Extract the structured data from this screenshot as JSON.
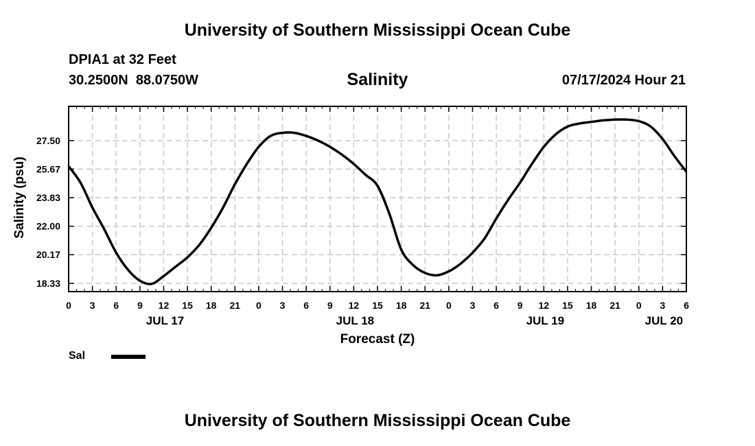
{
  "header": {
    "title": "University of Southern Mississippi Ocean Cube",
    "station": "DPIA1 at 32 Feet",
    "coordinates": "30.2500N  88.0750W",
    "variable": "Salinity",
    "datetime": "07/17/2024 Hour 21"
  },
  "footer": {
    "title": "University of Southern Mississippi Ocean Cube"
  },
  "legend": {
    "label": "Sal"
  },
  "chart_data": {
    "type": "line",
    "title": "Salinity",
    "xlabel": "Forecast (Z)",
    "ylabel": "Salinity (psu)",
    "x_unit": "hours since JUL 17 00Z",
    "xlim": [
      0,
      78
    ],
    "ylim": [
      17.8,
      29.7
    ],
    "yticks": [
      18.33,
      20.17,
      22.0,
      23.83,
      25.67,
      27.5
    ],
    "ytick_labels": [
      "18.33",
      "20.17",
      "22.00",
      "23.83",
      "25.67",
      "27.50"
    ],
    "xticks": [
      0,
      3,
      6,
      9,
      12,
      15,
      18,
      21,
      24,
      27,
      30,
      33,
      36,
      39,
      42,
      45,
      48,
      51,
      54,
      57,
      60,
      63,
      66,
      69,
      72,
      75,
      78
    ],
    "xtick_labels": [
      "0",
      "3",
      "6",
      "9",
      "12",
      "15",
      "18",
      "21",
      "0",
      "3",
      "6",
      "9",
      "12",
      "15",
      "18",
      "21",
      "0",
      "3",
      "6",
      "9",
      "12",
      "15",
      "18",
      "21",
      "0",
      "3",
      "6"
    ],
    "date_labels": [
      {
        "x": 12,
        "label": "JUL 17"
      },
      {
        "x": 36,
        "label": "JUL 18"
      },
      {
        "x": 60,
        "label": "JUL 19"
      },
      {
        "x": 75,
        "label": "JUL 20"
      }
    ],
    "grid": true,
    "series": [
      {
        "name": "Sal",
        "color": "#000000",
        "x": [
          0,
          1.5,
          3,
          4.5,
          6,
          7.5,
          9,
          10.5,
          12,
          13.5,
          15,
          16.5,
          18,
          19.5,
          21,
          22.5,
          24,
          25.5,
          27,
          28.5,
          30,
          31.5,
          33,
          34.5,
          36,
          37.5,
          39,
          40.5,
          42,
          43.5,
          45,
          46.5,
          48,
          49.5,
          51,
          52.5,
          54,
          55.5,
          57,
          58.5,
          60,
          61.5,
          63,
          64.5,
          66,
          67.5,
          69,
          70.5,
          72,
          73.5,
          75,
          76.5,
          78
        ],
        "y": [
          25.85,
          24.8,
          23.2,
          21.8,
          20.3,
          19.2,
          18.5,
          18.3,
          18.8,
          19.4,
          20.0,
          20.8,
          21.9,
          23.2,
          24.7,
          26.0,
          27.1,
          27.8,
          28.0,
          28.0,
          27.8,
          27.5,
          27.1,
          26.6,
          26.0,
          25.3,
          24.6,
          22.8,
          20.5,
          19.5,
          19.0,
          18.85,
          19.1,
          19.6,
          20.3,
          21.2,
          22.5,
          23.7,
          24.8,
          26.0,
          27.1,
          27.9,
          28.4,
          28.6,
          28.7,
          28.8,
          28.85,
          28.85,
          28.75,
          28.4,
          27.6,
          26.5,
          25.5
        ]
      }
    ]
  }
}
